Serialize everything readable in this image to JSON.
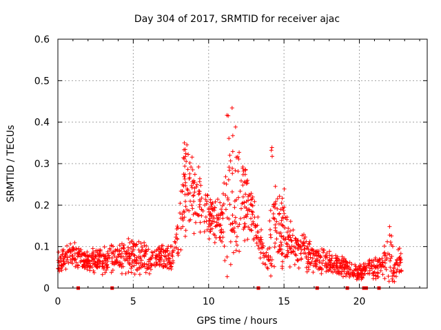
{
  "chart_data": {
    "type": "scatter",
    "title": "Day 304 of 2017, SRMTID for receiver ajac",
    "xlabel": "GPS time / hours",
    "ylabel": "SRMTID / TECUs",
    "xlim": [
      0,
      24.5
    ],
    "ylim": [
      0,
      0.6
    ],
    "x_ticks": [
      0,
      5,
      10,
      15,
      20
    ],
    "x_tick_labels": [
      "0",
      "5",
      "10",
      "15",
      "20"
    ],
    "y_ticks": [
      0,
      0.1,
      0.2,
      0.3,
      0.4,
      0.5,
      0.6
    ],
    "y_tick_labels": [
      "0",
      "0.1",
      "0.2",
      "0.3",
      "0.4",
      "0.5",
      "0.6"
    ],
    "grid": true,
    "marker": "plus",
    "series_color": "#ff0000",
    "envelope": {
      "description_of_shape": "SRMTID value envelope sampled along GPS time",
      "x": [
        0,
        0.5,
        1,
        1.5,
        2,
        2.5,
        3,
        3.5,
        4,
        4.5,
        5,
        5.5,
        6,
        6.5,
        7,
        7.5,
        8,
        8.25,
        8.5,
        8.75,
        9,
        9.25,
        9.5,
        10,
        10.5,
        11,
        11.25,
        11.5,
        11.75,
        12,
        12.25,
        12.5,
        13,
        13.5,
        14,
        14.2,
        14.5,
        15,
        15.5,
        16,
        16.5,
        17,
        17.5,
        18,
        18.5,
        19,
        19.5,
        20,
        20.5,
        21,
        21.5,
        22,
        22.5,
        22.8
      ],
      "center": [
        0.06,
        0.07,
        0.08,
        0.07,
        0.065,
        0.07,
        0.065,
        0.07,
        0.08,
        0.075,
        0.08,
        0.075,
        0.07,
        0.065,
        0.07,
        0.075,
        0.12,
        0.22,
        0.26,
        0.22,
        0.24,
        0.22,
        0.19,
        0.16,
        0.17,
        0.15,
        0.26,
        0.24,
        0.21,
        0.24,
        0.22,
        0.2,
        0.15,
        0.1,
        0.08,
        0.22,
        0.14,
        0.14,
        0.1,
        0.09,
        0.08,
        0.07,
        0.065,
        0.06,
        0.055,
        0.05,
        0.04,
        0.035,
        0.045,
        0.05,
        0.055,
        0.07,
        0.06,
        0.07
      ],
      "spread": [
        0.03,
        0.035,
        0.04,
        0.035,
        0.03,
        0.035,
        0.035,
        0.04,
        0.05,
        0.045,
        0.05,
        0.045,
        0.04,
        0.035,
        0.04,
        0.04,
        0.06,
        0.16,
        0.14,
        0.12,
        0.12,
        0.11,
        0.09,
        0.06,
        0.07,
        0.08,
        0.28,
        0.27,
        0.2,
        0.17,
        0.14,
        0.1,
        0.07,
        0.05,
        0.04,
        0.25,
        0.1,
        0.12,
        0.06,
        0.05,
        0.05,
        0.035,
        0.035,
        0.03,
        0.03,
        0.03,
        0.025,
        0.02,
        0.025,
        0.03,
        0.03,
        0.1,
        0.04,
        0.05
      ]
    },
    "point_count": 1400,
    "baseline_markers_x": [
      1.35,
      3.6,
      13.3,
      17.2,
      19.2,
      20.3,
      20.45,
      21.3
    ]
  }
}
